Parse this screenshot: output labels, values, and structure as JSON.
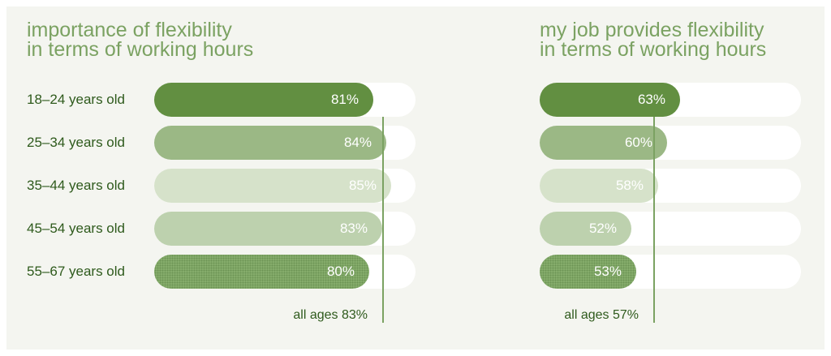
{
  "chart_data": [
    {
      "type": "bar",
      "orientation": "horizontal",
      "title": "importance of flexibility\nin terms of working hours",
      "categories": [
        "18–24 years old",
        "25–34 years old",
        "35–44 years old",
        "45–54 years old",
        "55–67 years old"
      ],
      "values": [
        81,
        84,
        85,
        83,
        80
      ],
      "value_labels": [
        "81%",
        "84%",
        "85%",
        "83%",
        "80%"
      ],
      "average": 83,
      "average_label": "all ages 83%",
      "xlim": [
        0,
        100
      ]
    },
    {
      "type": "bar",
      "orientation": "horizontal",
      "title": "my job provides flexibility\nin terms of working hours",
      "categories": [
        "18–24 years old",
        "25–34 years old",
        "35–44 years old",
        "45–54 years old",
        "55–67 years old"
      ],
      "values": [
        63,
        60,
        58,
        52,
        53
      ],
      "value_labels": [
        "63%",
        "60%",
        "58%",
        "52%",
        "53%"
      ],
      "average": 57,
      "average_label": "all ages 57%",
      "xlim": [
        0,
        100
      ]
    }
  ],
  "colors": {
    "title": "#7ba262",
    "label": "#2e5a1c",
    "track": "#ffffff",
    "average_line": "#7ba262",
    "bar_colors": [
      "#628f41",
      "#9bb885",
      "#d6e2ca",
      "#bdd1ae",
      "#86ad6c"
    ],
    "bar_text": "#ffffff"
  }
}
